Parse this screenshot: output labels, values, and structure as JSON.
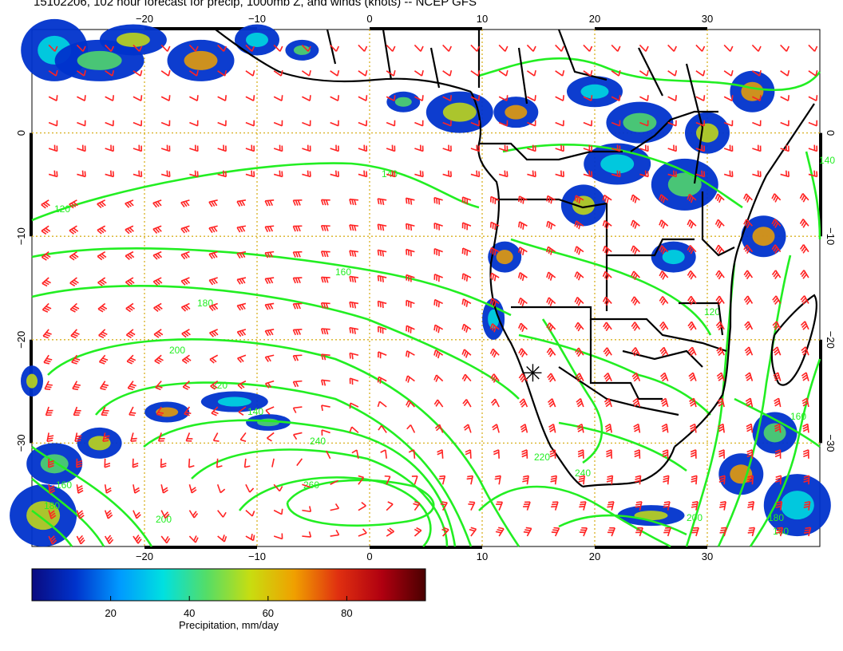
{
  "title": "15102206, 102 hour forecast for precip, 1000mb Z, and winds (knots) -- NCEP GFS",
  "axes": {
    "x_ticks": [
      "−20",
      "−10",
      "0",
      "10",
      "20",
      "30"
    ],
    "x_values": [
      -20,
      -10,
      0,
      10,
      20,
      30
    ],
    "y_ticks": [
      "0",
      "−10",
      "−20",
      "−30"
    ],
    "y_values": [
      0,
      -10,
      -20,
      -30
    ],
    "lon_range": [
      -30,
      40
    ],
    "lat_range": [
      -40,
      10
    ],
    "grid": "dotted, every 10 degrees"
  },
  "contours": {
    "color": "#22ee22",
    "labels": [
      "120",
      "140",
      "160",
      "180",
      "200",
      "220",
      "240",
      "260",
      "140",
      "160",
      "180",
      "200",
      "220",
      "240",
      "200",
      "180",
      "160",
      "160",
      "140",
      "120"
    ]
  },
  "winds": {
    "color": "#ff2222",
    "units": "knots"
  },
  "marker": {
    "symbol": "asterisk",
    "lon": 14.5,
    "lat": -23.2
  },
  "colorbar": {
    "label": "Precipitation, mm/day",
    "ticks": [
      "20",
      "40",
      "60",
      "80"
    ],
    "tick_values": [
      20,
      40,
      60,
      80
    ],
    "range": [
      0,
      100
    ],
    "colors": [
      "#0a0a80",
      "#0033cc",
      "#0099ff",
      "#00e0e0",
      "#55dd66",
      "#c8dd10",
      "#f0a000",
      "#e03010",
      "#b00010",
      "#4a0000"
    ]
  }
}
